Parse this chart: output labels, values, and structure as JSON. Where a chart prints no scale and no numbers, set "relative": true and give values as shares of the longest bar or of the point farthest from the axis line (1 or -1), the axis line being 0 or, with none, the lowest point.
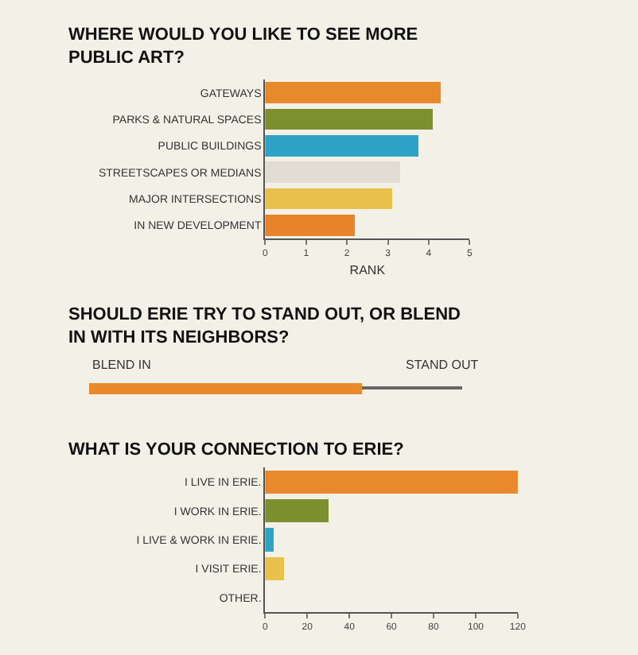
{
  "chart_data": [
    {
      "type": "bar",
      "orientation": "horizontal",
      "title": "WHERE WOULD YOU LIKE TO SEE MORE PUBLIC ART?",
      "xlabel": "RANK",
      "categories": [
        "GATEWAYS",
        "PARKS & NATURAL SPACES",
        "PUBLIC BUILDINGS",
        "STREETSCAPES OR MEDIANS",
        "MAJOR INTERSECTIONS",
        "IN NEW DEVELOPMENT"
      ],
      "values": [
        4.3,
        4.1,
        3.75,
        3.3,
        3.1,
        2.2
      ],
      "colors": [
        "#e8892b",
        "#7d8f2f",
        "#2fa3c6",
        "#e2ddd2",
        "#e9c14c",
        "#e8832a"
      ],
      "xlim": [
        0,
        5
      ],
      "xticks": [
        0,
        1,
        2,
        3,
        4,
        5
      ],
      "grid": false
    },
    {
      "type": "bar",
      "orientation": "horizontal",
      "title": "SHOULD ERIE TRY TO STAND OUT, OR BLEND IN WITH ITS NEIGHBORS?",
      "categories": [
        null
      ],
      "relative": true,
      "stacked": true,
      "series": [
        {
          "color": "#e8892b",
          "values": [
            0.73
          ]
        },
        {
          "color": "#666666",
          "values": [
            0.27
          ]
        }
      ],
      "annotations": [
        "BLEND IN",
        "STAND OUT"
      ],
      "grid": false
    },
    {
      "type": "bar",
      "orientation": "horizontal",
      "title": "WHAT IS YOUR CONNECTION TO ERIE?",
      "categories": [
        "I LIVE IN ERIE.",
        "I WORK IN ERIE.",
        "I LIVE & WORK IN ERIE.",
        "I VISIT ERIE.",
        "OTHER."
      ],
      "values": [
        120,
        30,
        4,
        9,
        0
      ],
      "colors": [
        "#e8892b",
        "#7d8f2f",
        "#2fa3c6",
        "#e9c14c",
        "#e2ddd2"
      ],
      "xlim": [
        0,
        120
      ],
      "xticks": [
        0,
        20,
        40,
        60,
        80,
        100,
        120
      ],
      "grid": false
    }
  ]
}
